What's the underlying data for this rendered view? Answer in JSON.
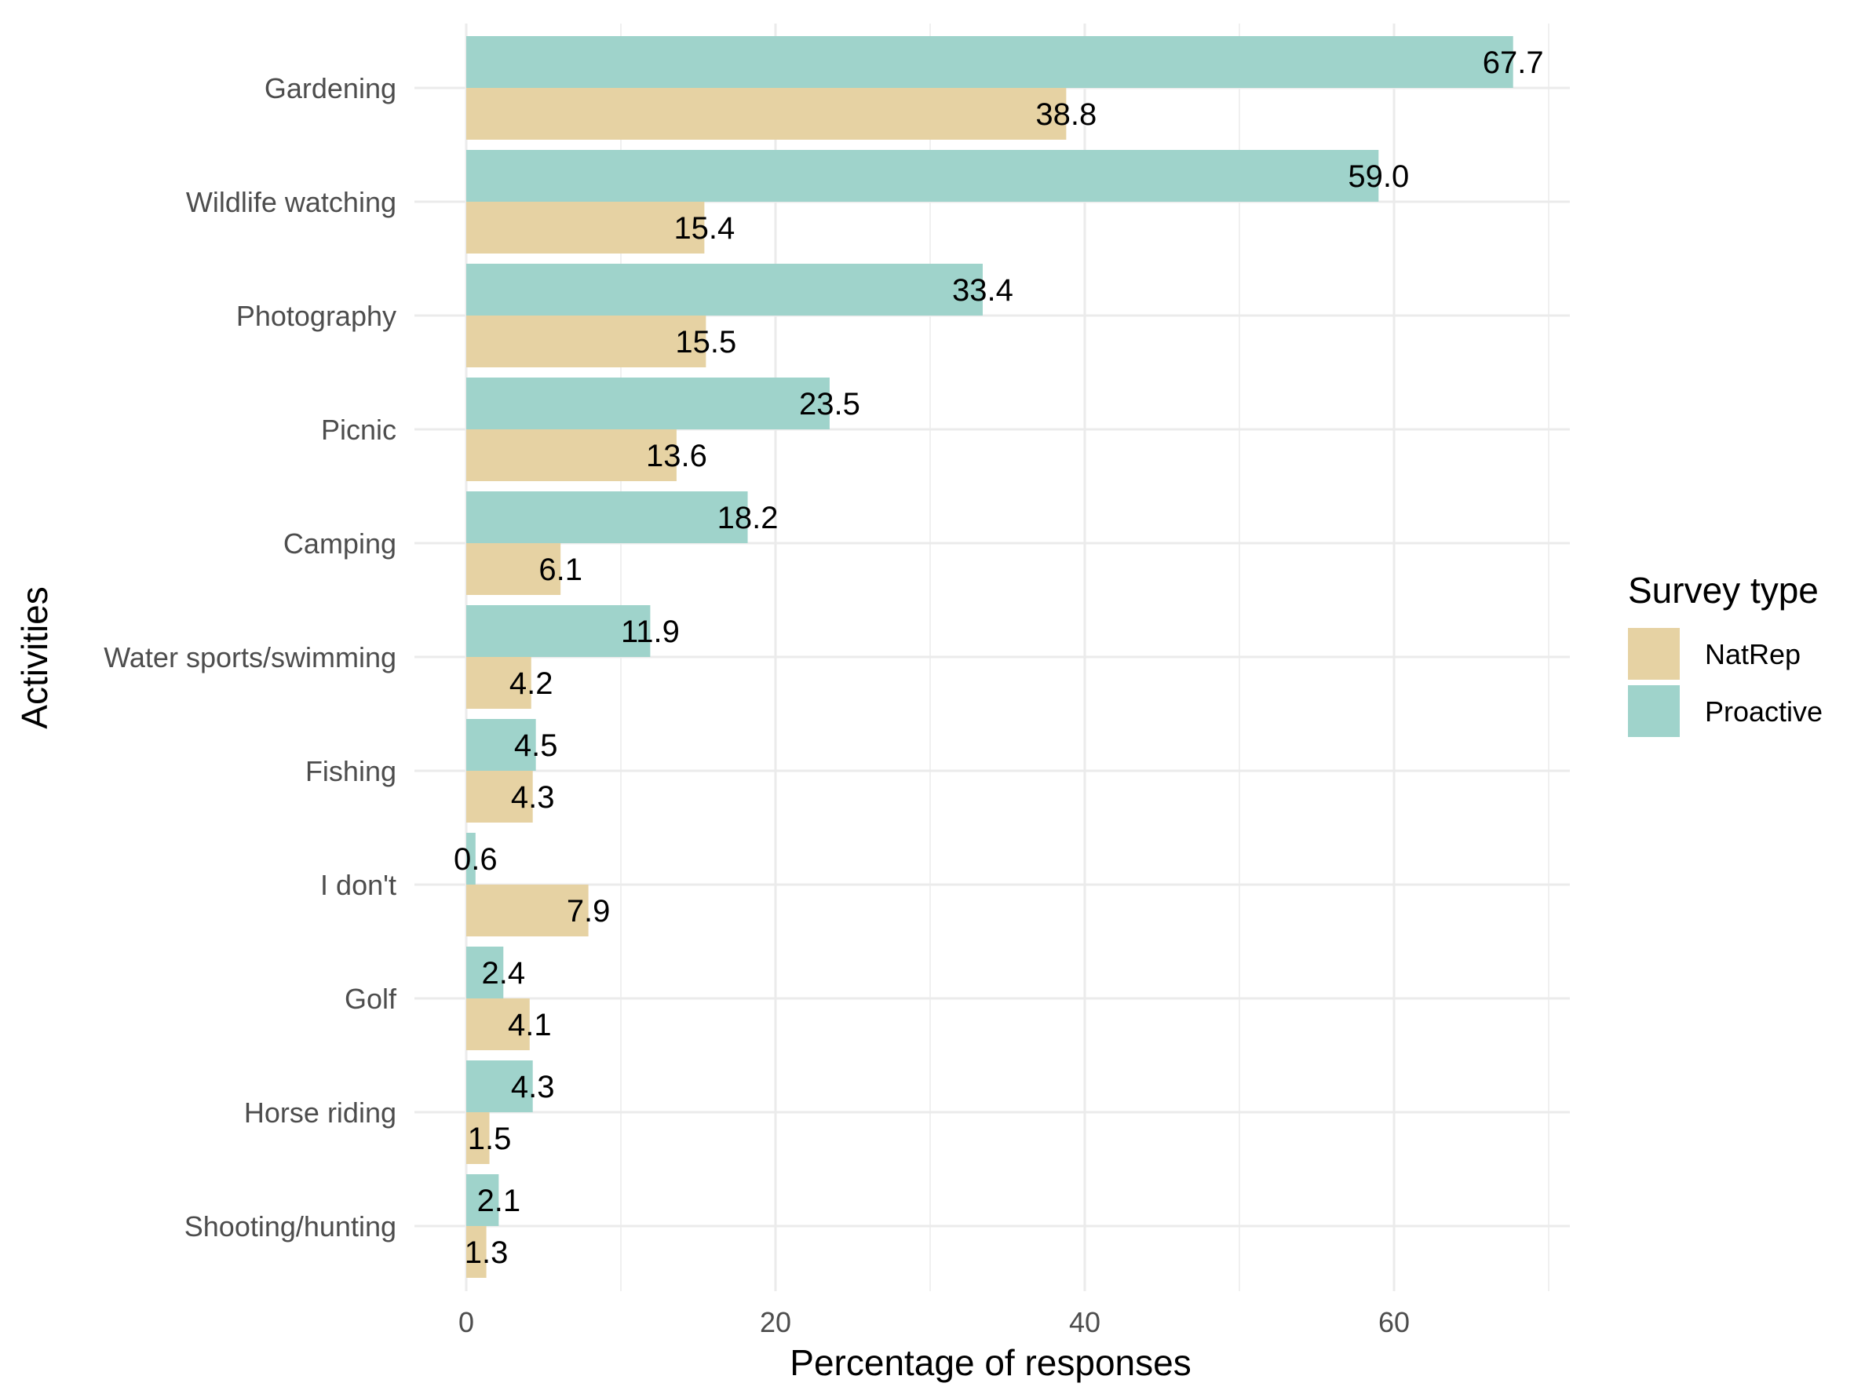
{
  "chart_data": {
    "type": "bar",
    "orientation": "horizontal",
    "categories": [
      "Gardening",
      "Wildlife watching",
      "Photography",
      "Picnic",
      "Camping",
      "Water sports/swimming",
      "Fishing",
      "I don't",
      "Golf",
      "Horse riding",
      "Shooting/hunting"
    ],
    "series": [
      {
        "name": "Proactive",
        "color": "#9fd3cb",
        "values": [
          67.7,
          59.0,
          33.4,
          23.5,
          18.2,
          11.9,
          4.5,
          0.6,
          2.4,
          4.3,
          2.1
        ]
      },
      {
        "name": "NatRep",
        "color": "#e6d2a3",
        "values": [
          38.8,
          15.4,
          15.5,
          13.6,
          6.1,
          4.2,
          4.3,
          7.9,
          4.1,
          1.5,
          1.3
        ]
      }
    ],
    "data_labels": {
      "Proactive": [
        "67.7",
        "59.0",
        "33.4",
        "23.5",
        "18.2",
        "11.9",
        "4.5",
        "0.6",
        "2.4",
        "4.3",
        "2.1"
      ],
      "NatRep": [
        "38.8",
        "15.4",
        "15.5",
        "13.6",
        "6.1",
        "4.2",
        "4.3",
        "7.9",
        "4.1",
        "1.5",
        "1.3"
      ]
    },
    "xlabel": "Percentage of responses",
    "ylabel": "Activities",
    "xlim": [
      0,
      70
    ],
    "xticks": [
      0,
      20,
      40,
      60
    ],
    "xtick_labels": [
      "0",
      "20",
      "40",
      "60"
    ],
    "grid": true,
    "legend": {
      "title": "Survey type",
      "position": "right",
      "entries": [
        {
          "label": "NatRep",
          "color": "#e6d2a3"
        },
        {
          "label": "Proactive",
          "color": "#9fd3cb"
        }
      ]
    }
  }
}
